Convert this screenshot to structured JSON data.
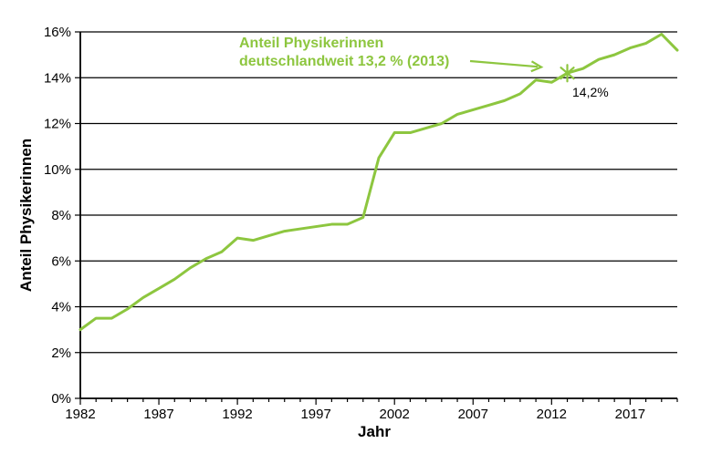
{
  "chart_data": {
    "type": "line",
    "title": "",
    "xlabel": "Jahr",
    "ylabel": "Anteil Physikerinnen",
    "xlim": [
      1982,
      2020
    ],
    "ylim": [
      0,
      16
    ],
    "grid": "horizontal",
    "legend": "none",
    "background_color": "#ffffff",
    "axis_color": "#000000",
    "x": [
      1982,
      1983,
      1984,
      1985,
      1986,
      1987,
      1988,
      1989,
      1990,
      1991,
      1992,
      1993,
      1994,
      1995,
      1996,
      1997,
      1998,
      1999,
      2000,
      2001,
      2002,
      2003,
      2004,
      2005,
      2006,
      2007,
      2008,
      2009,
      2010,
      2011,
      2012,
      2013,
      2014,
      2015,
      2016,
      2017,
      2018,
      2019,
      2020
    ],
    "series": [
      {
        "name": "Anteil Physikerinnen",
        "color": "#8dc63f",
        "values": [
          3.0,
          3.5,
          3.5,
          3.9,
          4.4,
          4.8,
          5.2,
          5.7,
          6.1,
          6.4,
          7.0,
          6.9,
          7.1,
          7.3,
          7.4,
          7.5,
          7.6,
          7.6,
          7.9,
          10.5,
          11.6,
          11.6,
          11.8,
          12.0,
          12.4,
          12.6,
          12.8,
          13.0,
          13.3,
          13.9,
          13.8,
          14.2,
          14.4,
          14.8,
          15.0,
          15.3,
          15.5,
          15.9,
          15.2
        ]
      }
    ],
    "y_tick_values": [
      0,
      2,
      4,
      6,
      8,
      10,
      12,
      14,
      16
    ],
    "y_tick_labels": [
      "0%",
      "2%",
      "4%",
      "6%",
      "8%",
      "10%",
      "12%",
      "14%",
      "16%"
    ],
    "x_major_ticks": [
      1982,
      1987,
      1992,
      1997,
      2002,
      2007,
      2012,
      2017
    ],
    "x_minor_tick_step": 1,
    "annotation": {
      "line1": "Anteil Physikerinnen",
      "line2": "deutschlandweit 13,2 % (2013)",
      "marker_year": 2013,
      "marker_value": 14.2,
      "marker_label": "14,2%",
      "marker_symbol": "asterisk"
    }
  }
}
